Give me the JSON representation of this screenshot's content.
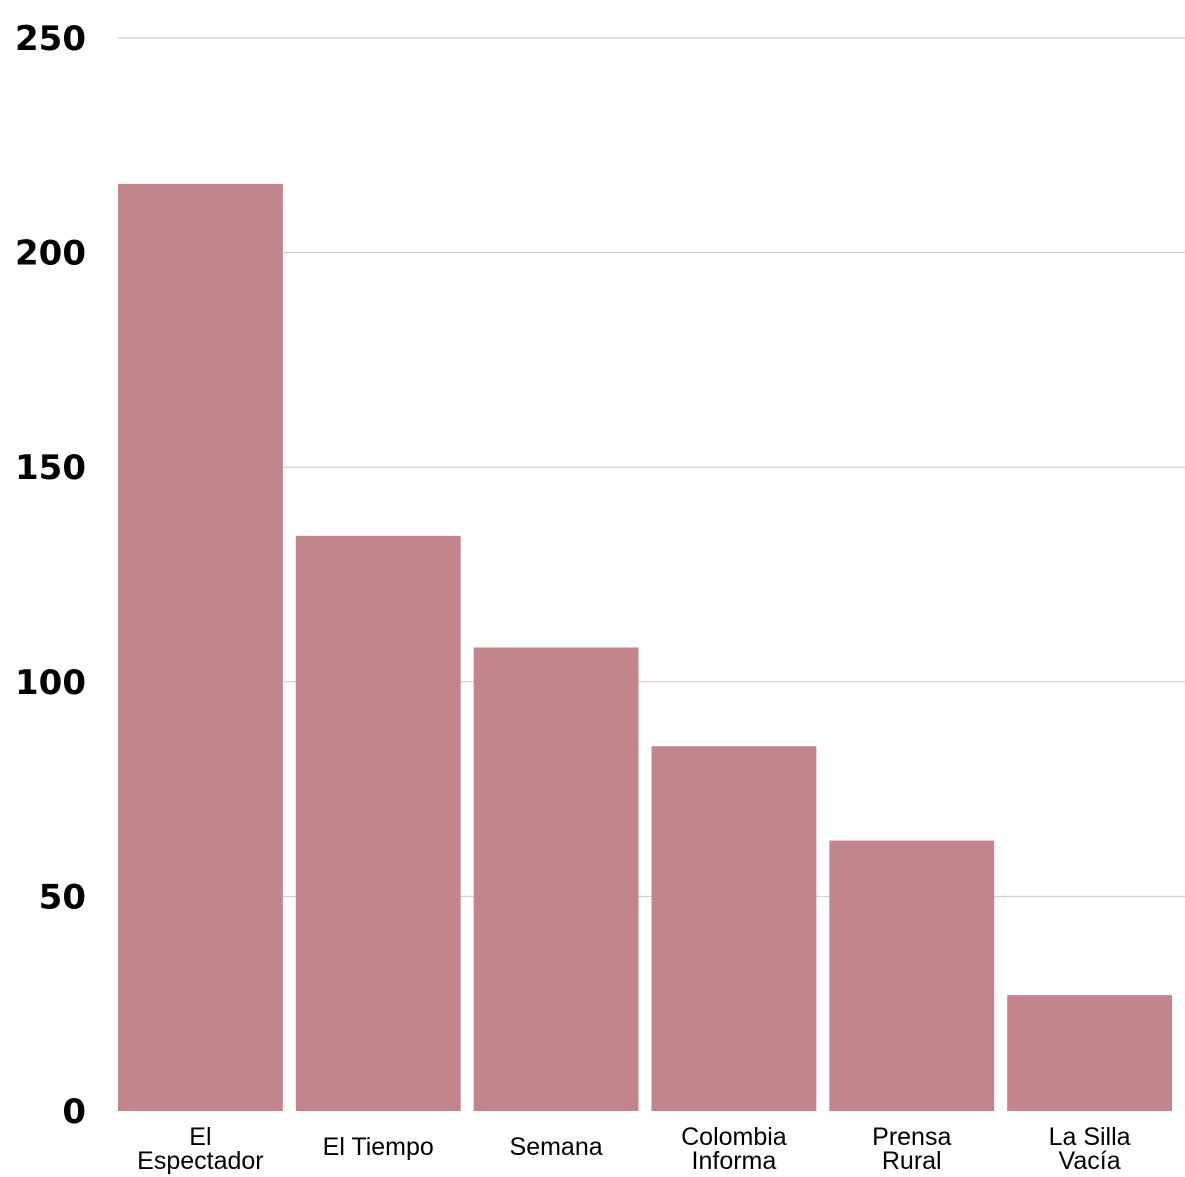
{
  "chart_data": {
    "type": "bar",
    "title": "",
    "xlabel": "",
    "ylabel": "",
    "categories": [
      [
        "El",
        "Espectador"
      ],
      [
        "El Tiempo"
      ],
      [
        "Semana"
      ],
      [
        "Colombia",
        "Informa"
      ],
      [
        "Prensa",
        "Rural"
      ],
      [
        "La Silla",
        "Vacía"
      ]
    ],
    "values": [
      216,
      134,
      108,
      85,
      63,
      27
    ],
    "ylim": [
      0,
      250
    ],
    "yticks": [
      0,
      50,
      100,
      150,
      200,
      250
    ],
    "grid": true,
    "legend": "none",
    "colors": {
      "bar": "#c2858b",
      "grid": "#c8c8c8",
      "text": "#000000"
    }
  }
}
